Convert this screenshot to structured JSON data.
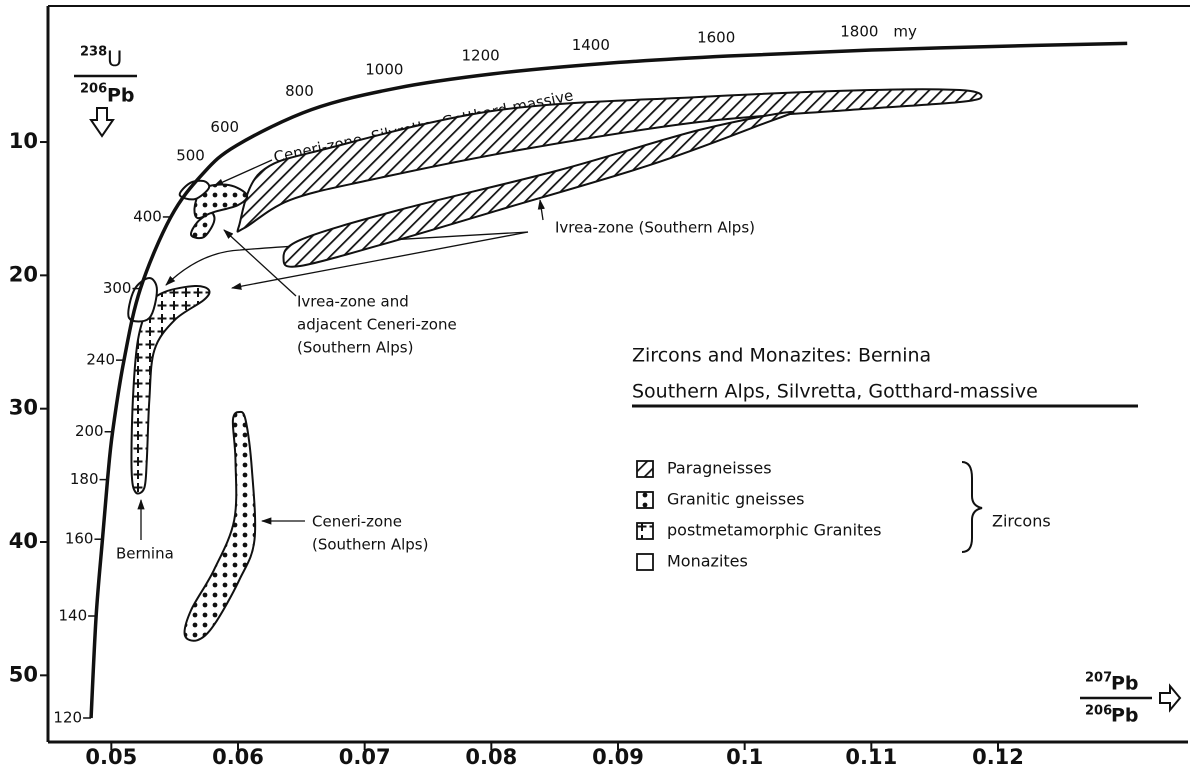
{
  "chart_data": {
    "type": "concordia",
    "title": "Zircons and Monazites: Bernina",
    "subtitle": "Southern Alps, Silvretta, Gotthard-massive",
    "y_label": {
      "top_mass": "238",
      "top_element": "U",
      "bottom_mass": "206",
      "bottom_element": "Pb"
    },
    "x_label": {
      "top_mass": "207",
      "top_element": "Pb",
      "bottom_mass": "206",
      "bottom_element": "Pb"
    },
    "xlim": [
      0.045,
      0.135
    ],
    "ylim": [
      0,
      55
    ],
    "y_inverted": true,
    "xticks": [
      0.05,
      0.06,
      0.07,
      0.08,
      0.09,
      0.1,
      0.11,
      0.12
    ],
    "yticks": [
      10,
      20,
      30,
      40,
      50
    ],
    "age_unit": "my",
    "concordia": {
      "ages": [
        120,
        140,
        160,
        180,
        200,
        240,
        300,
        400,
        500,
        600,
        800,
        1000,
        1200,
        1400,
        1600,
        1800,
        null,
        null
      ],
      "x": [
        0.0484,
        0.0488,
        0.0493,
        0.0497,
        0.0501,
        0.051,
        0.0523,
        0.0547,
        0.0572,
        0.0599,
        0.0658,
        0.0725,
        0.0801,
        0.0888,
        0.0987,
        0.11,
        0.123,
        0.1302
      ],
      "y": [
        53.2,
        45.55,
        39.79,
        35.32,
        31.73,
        26.36,
        20.99,
        15.62,
        12.4,
        10.25,
        7.57,
        5.96,
        4.89,
        4.12,
        3.55,
        3.1,
        2.75,
        2.6
      ]
    },
    "legend": [
      {
        "label": "Paragneisses",
        "pattern": "hatch"
      },
      {
        "label": "Granitic gneisses",
        "pattern": "dots"
      },
      {
        "label": "postmetamorphic Granites",
        "pattern": "plus"
      },
      {
        "label": "Monazites",
        "pattern": "open"
      }
    ],
    "legend_group": "Zircons",
    "regions": [
      {
        "pattern": "hatch",
        "x": [
          0.0601,
          0.0618,
          0.0672,
          0.0806,
          0.0964,
          0.1099,
          0.117,
          0.1187,
          0.117,
          0.1083,
          0.0964,
          0.0822,
          0.0704,
          0.0641,
          0.0605
        ],
        "y": [
          16.23,
          12.25,
          10.45,
          7.6,
          6.62,
          6.1,
          6.1,
          6.55,
          7.0,
          7.6,
          8.5,
          10.6,
          12.85,
          14.35,
          16.45
        ]
      },
      {
        "pattern": "hatch",
        "x": [
          0.0636,
          0.0649,
          0.0727,
          0.0854,
          0.0964,
          0.1036,
          0.1012,
          0.0925,
          0.0806,
          0.0712,
          0.0649
        ],
        "y": [
          18.85,
          17.35,
          15.1,
          12.1,
          9.1,
          7.75,
          8.72,
          11.73,
          15.1,
          17.73,
          19.3
        ]
      },
      {
        "pattern": "dots",
        "x": [
          0.0566,
          0.0573,
          0.0593,
          0.0607,
          0.06,
          0.0581,
          0.0568
        ],
        "y": [
          14.73,
          13.45,
          13.23,
          13.98,
          14.73,
          15.25,
          15.7
        ]
      },
      {
        "pattern": "dots",
        "x": [
          0.0563,
          0.0568,
          0.0579,
          0.0581,
          0.0573
        ],
        "y": [
          16.98,
          16.0,
          15.33,
          16.0,
          17.13
        ]
      },
      {
        "pattern": "plus",
        "x": [
          0.0542,
          0.0566,
          0.0577,
          0.0573,
          0.055,
          0.0534,
          0.053,
          0.0528,
          0.0526,
          0.0519,
          0.0516,
          0.0517,
          0.0521,
          0.053
        ],
        "y": [
          21.25,
          20.8,
          21.1,
          21.85,
          23.35,
          25.6,
          29.35,
          33.85,
          35.95,
          36.25,
          34.6,
          29.35,
          24.85,
          22.23
        ]
      },
      {
        "pattern": "dots",
        "x": [
          0.0601,
          0.0606,
          0.0611,
          0.0613,
          0.0601,
          0.0581,
          0.0568,
          0.0558,
          0.0563,
          0.0581,
          0.0597,
          0.0598,
          0.0596
        ],
        "y": [
          30.25,
          30.85,
          34.6,
          39.85,
          42.85,
          46.23,
          47.36,
          46.98,
          45.1,
          42.1,
          38.36,
          33.86,
          30.85
        ]
      },
      {
        "pattern": "open",
        "x": [
          0.0554,
          0.0562,
          0.0573,
          0.0577,
          0.0566
        ],
        "y": [
          13.98,
          13.08,
          12.93,
          13.45,
          14.28
        ]
      },
      {
        "pattern": "open",
        "x": [
          0.0514,
          0.0518,
          0.053,
          0.0536,
          0.053
        ],
        "y": [
          23.2,
          21.1,
          20.2,
          21.1,
          23.2
        ]
      }
    ],
    "annotations": {
      "ceneri_silvretta": "Ceneri-zone, Silvretta, Gotthard-massive",
      "ivrea": "Ivrea-zone (Southern Alps)",
      "ivrea_adjacent": [
        "Ivrea-zone and",
        "adjacent Ceneri-zone",
        "(Southern Alps)"
      ],
      "ceneri": [
        "Ceneri-zone",
        "(Southern Alps)"
      ],
      "bernina": "Bernina"
    }
  }
}
